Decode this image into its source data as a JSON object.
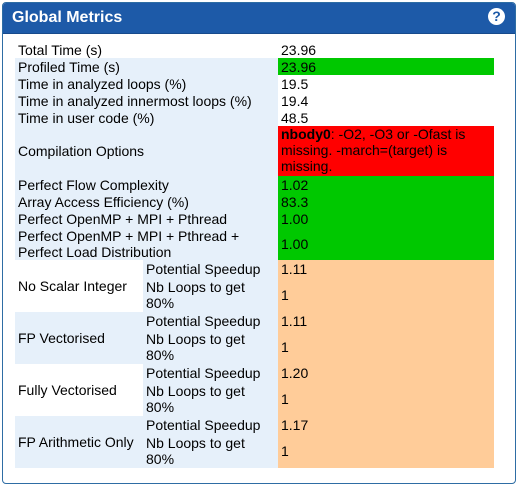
{
  "panel": {
    "title": "Global Metrics",
    "help": "?"
  },
  "rows": {
    "total_time": {
      "label": "Total Time (s)",
      "value": "23.96"
    },
    "profiled_time": {
      "label": "Profiled Time (s)",
      "value": "23.96"
    },
    "analyzed_loops": {
      "label": "Time in analyzed loops (%)",
      "value": "19.5"
    },
    "innermost_loops": {
      "label": "Time in analyzed innermost loops (%)",
      "value": "19.4"
    },
    "user_code": {
      "label": "Time in user code (%)",
      "value": "48.5"
    },
    "compilation": {
      "label": "Compilation Options",
      "value_bold": "nbody0",
      "value_rest": ": -O2, -O3 or -Ofast is missing. -march=(target) is missing."
    },
    "flow": {
      "label": "Perfect Flow Complexity",
      "value": "1.02"
    },
    "array_access": {
      "label": "Array Access Efficiency (%)",
      "value": "83.3"
    },
    "openmp": {
      "label": "Perfect OpenMP + MPI + Pthread",
      "value": "1.00"
    },
    "openmp_lb": {
      "label": "Perfect OpenMP + MPI + Pthread + Perfect Load Distribution",
      "value": "1.00"
    }
  },
  "groups": [
    {
      "label": "No Scalar Integer",
      "speedup_label": "Potential Speedup",
      "speedup": "1.11",
      "loops_label": "Nb Loops to get 80%",
      "loops": "1"
    },
    {
      "label": "FP Vectorised",
      "speedup_label": "Potential Speedup",
      "speedup": "1.11",
      "loops_label": "Nb Loops to get 80%",
      "loops": "1"
    },
    {
      "label": "Fully Vectorised",
      "speedup_label": "Potential Speedup",
      "speedup": "1.20",
      "loops_label": "Nb Loops to get 80%",
      "loops": "1"
    },
    {
      "label": "FP Arithmetic Only",
      "speedup_label": "Potential Speedup",
      "speedup": "1.17",
      "loops_label": "Nb Loops to get 80%",
      "loops": "1"
    }
  ],
  "colors": {
    "header": "#1d5aa8",
    "good": "#00c800",
    "bad": "#ff0000",
    "neutral": "#ffcc99",
    "label_bg": "#e6f0fa"
  }
}
